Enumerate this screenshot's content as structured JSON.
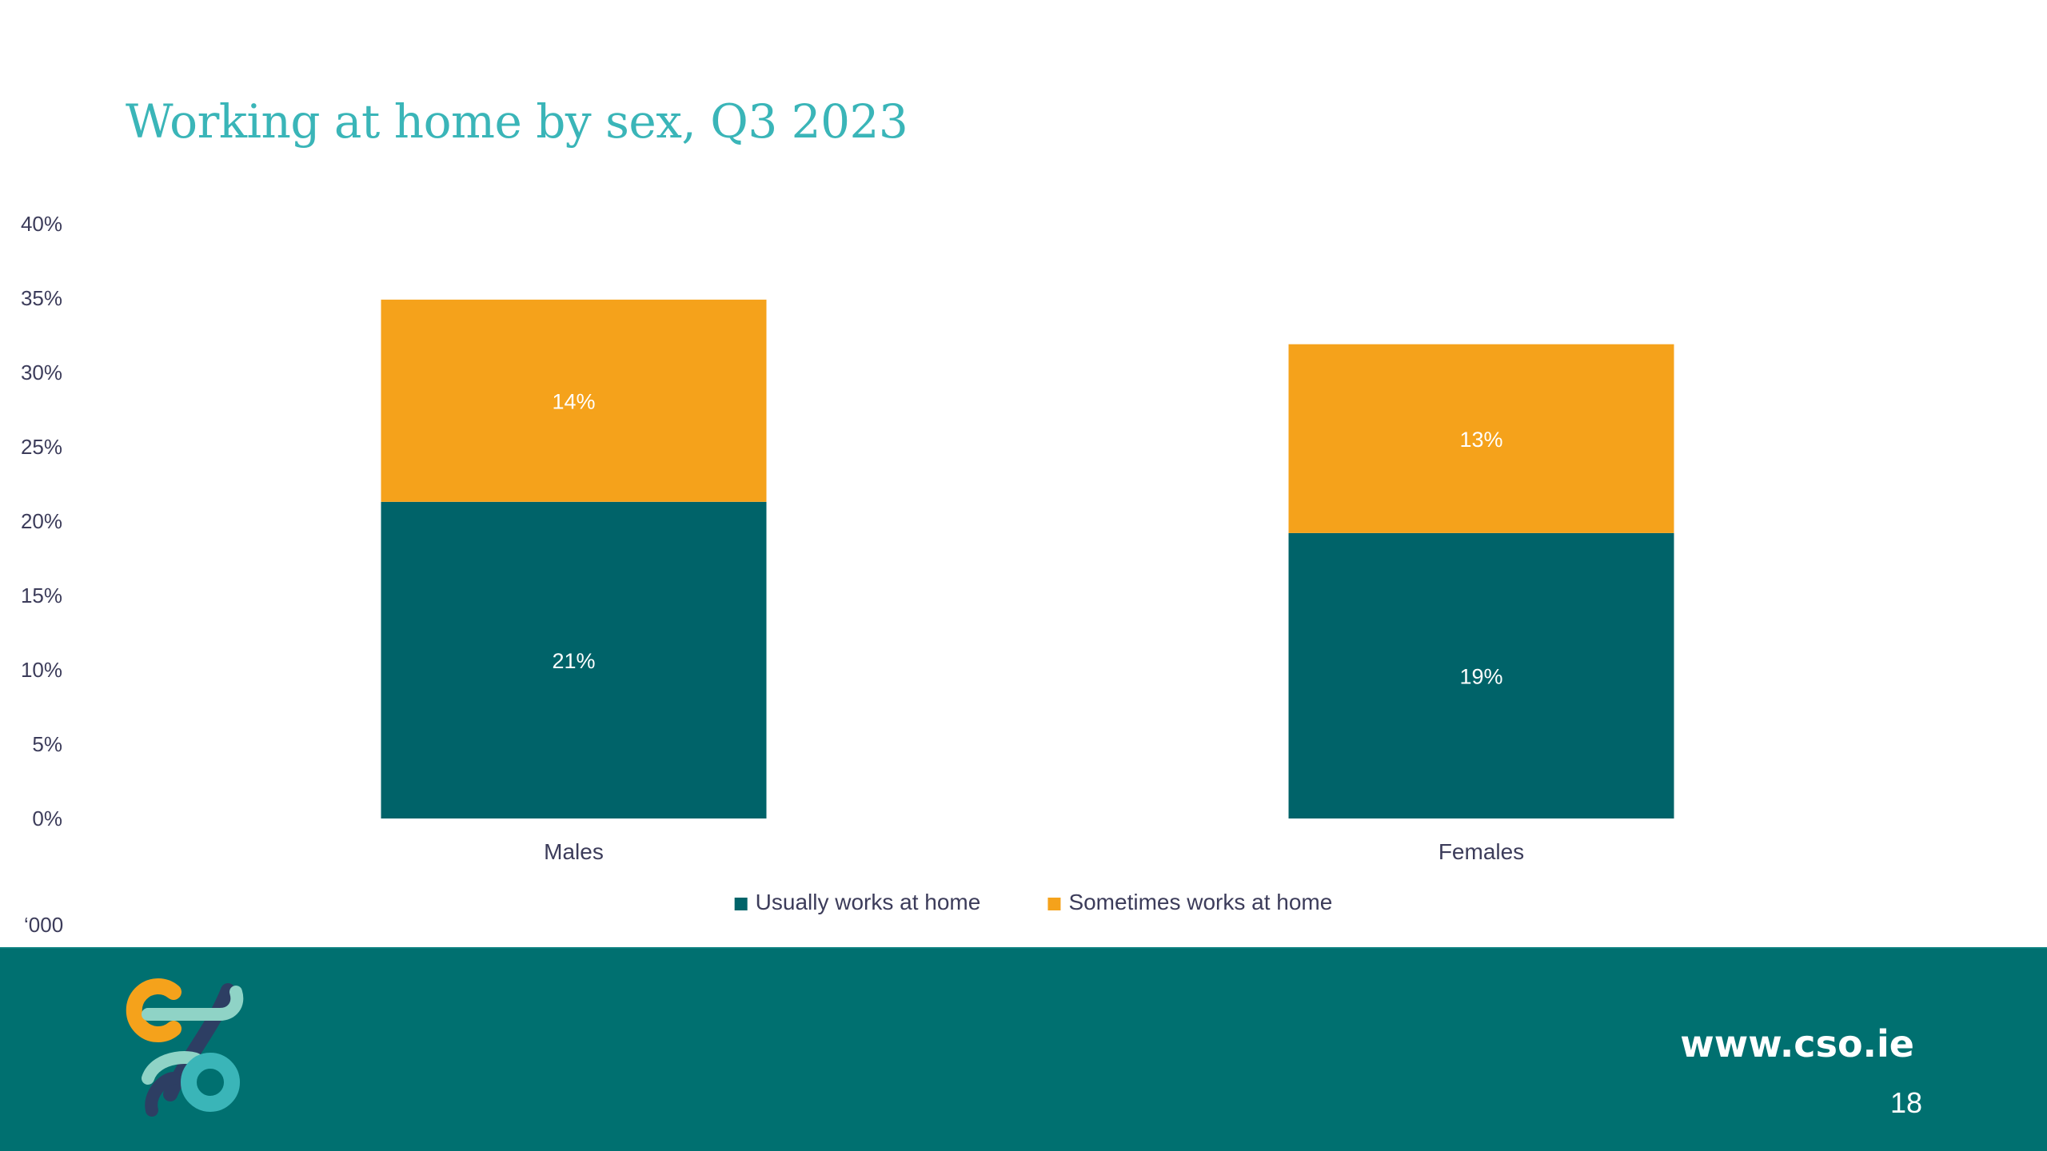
{
  "slide": {
    "title": "Working at home by sex, Q3 2023",
    "unit_label": "‘000",
    "website": "www.cso.ie",
    "page_number": "18",
    "footer_color": "#007070",
    "logo": {
      "icon": "cso-logo-icon",
      "colors": [
        "#f5a21b",
        "#3ab5b8",
        "#2d3e63",
        "#8fd3c6"
      ]
    }
  },
  "chart_data": {
    "type": "bar",
    "stacked": true,
    "categories": [
      "Males",
      "Females"
    ],
    "series": [
      {
        "name": "Usually works at home",
        "values": [
          21.3,
          19.2
        ],
        "labels": [
          "21%",
          "19%"
        ],
        "color": "#006369"
      },
      {
        "name": "Sometimes works at home",
        "values": [
          13.6,
          12.7
        ],
        "labels": [
          "14%",
          "13%"
        ],
        "color": "#f5a21b"
      }
    ],
    "ylim": [
      0,
      40
    ],
    "yticks": [
      "0%",
      "5%",
      "10%",
      "15%",
      "20%",
      "25%",
      "30%",
      "35%",
      "40%"
    ],
    "grid": false,
    "legend": "bottom"
  }
}
